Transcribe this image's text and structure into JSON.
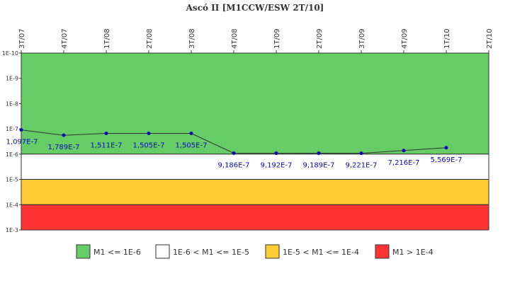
{
  "chart_data": {
    "type": "line",
    "title": "Ascó II [M1CCW/ESW 2T/10]",
    "x_ticks": [
      "3T/07",
      "4T/07",
      "1T/08",
      "2T/08",
      "3T/08",
      "4T/08",
      "1T/09",
      "2T/09",
      "3T/09",
      "4T/09",
      "1T/10",
      "2T/10"
    ],
    "y_scale": "log",
    "y_ticks": [
      "1E-10",
      "1E-9",
      "1E-8",
      "1E-7",
      "1E-6",
      "1E-5",
      "1E-4",
      "1E-3"
    ],
    "y_range": [
      1e-10,
      0.001
    ],
    "y_direction": "increasing-downward",
    "series": [
      {
        "values": [
          1.097e-07,
          1.789e-07,
          1.511e-07,
          1.505e-07,
          1.505e-07,
          9.186e-07,
          9.192e-07,
          9.189e-07,
          9.221e-07,
          7.216e-07,
          5.569e-07
        ],
        "labels": [
          "1,097E-7",
          "1,789E-7",
          "1,511E-7",
          "1,505E-7",
          "1,505E-7",
          "9,186E-7",
          "9,192E-7",
          "9,189E-7",
          "9,221E-7",
          "7,216E-7",
          "5,569E-7"
        ],
        "color": "#0a0ab4"
      }
    ],
    "bands": [
      {
        "from": 1e-10,
        "to": 1e-06,
        "color": "#66cc66",
        "label": "M1 <= 1E-6"
      },
      {
        "from": 1e-06,
        "to": 1e-05,
        "color": "#ffffff",
        "label": "1E-6 < M1 <= 1E-5"
      },
      {
        "from": 1e-05,
        "to": 0.0001,
        "color": "#ffcc33",
        "label": "1E-5 < M1 <= 1E-4"
      },
      {
        "from": 0.0001,
        "to": 0.001,
        "color": "#ff3333",
        "label": "M1 > 1E-4"
      }
    ],
    "legend_position": "bottom",
    "grid": false
  }
}
